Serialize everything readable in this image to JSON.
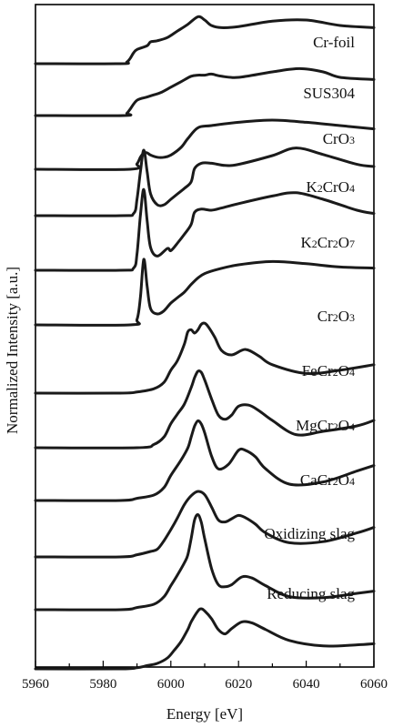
{
  "chart_data": {
    "type": "line",
    "title": "",
    "xlabel": "Energy [eV]",
    "ylabel": "Normalized Intensity [a.u.]",
    "xlim": [
      5960,
      6060
    ],
    "xticks": [
      5960,
      5980,
      6000,
      6020,
      6040,
      6060
    ],
    "yticks_shown": false,
    "grid": false,
    "legend": "none",
    "stacked_offset": true,
    "series": [
      {
        "name": "Cr-foil",
        "x": [
          5985,
          5987,
          5988,
          5989,
          5990,
          5993,
          5994,
          5996,
          5999,
          6002,
          6005,
          6008,
          6010,
          6012,
          6015,
          6020,
          6030,
          6040,
          6050,
          6060
        ],
        "y": [
          0.0,
          0.03,
          0.1,
          0.2,
          0.26,
          0.33,
          0.4,
          0.42,
          0.48,
          0.6,
          0.72,
          0.86,
          0.8,
          0.7,
          0.66,
          0.68,
          0.78,
          0.8,
          0.7,
          0.66
        ]
      },
      {
        "name": "SUS304",
        "x": [
          5986,
          5987,
          5988,
          5990,
          5993,
          5995,
          5997,
          6000,
          6003,
          6006,
          6008,
          6010,
          6012,
          6015,
          6020,
          6030,
          6038,
          6045,
          6050,
          6060
        ],
        "y": [
          0.0,
          0.04,
          0.12,
          0.28,
          0.34,
          0.38,
          0.42,
          0.52,
          0.62,
          0.72,
          0.74,
          0.74,
          0.76,
          0.72,
          0.7,
          0.8,
          0.86,
          0.8,
          0.7,
          0.66
        ]
      },
      {
        "name": "CrO₃",
        "x": [
          5988,
          5990,
          5991,
          5992,
          5993,
          5994,
          5996,
          5998,
          6000,
          6003,
          6005,
          6008,
          6012,
          6020,
          6030,
          6040,
          6050,
          6060
        ],
        "y": [
          0.0,
          0.1,
          0.22,
          0.3,
          0.3,
          0.26,
          0.22,
          0.22,
          0.26,
          0.4,
          0.56,
          0.76,
          0.8,
          0.86,
          0.9,
          0.86,
          0.8,
          0.74
        ]
      },
      {
        "name": "K₂CrO₄",
        "x": [
          5985,
          5989,
          5990,
          5991,
          5992,
          5993,
          5994,
          5996,
          5998,
          6000,
          6002,
          6004,
          6006,
          6007,
          6009,
          6012,
          6016,
          6020,
          6030,
          6037,
          6045,
          6055,
          6060
        ],
        "y": [
          0.0,
          0.04,
          0.3,
          0.8,
          1.2,
          0.8,
          0.4,
          0.2,
          0.2,
          0.3,
          0.4,
          0.5,
          0.62,
          0.86,
          0.96,
          0.96,
          0.92,
          0.94,
          1.1,
          1.24,
          1.12,
          0.94,
          0.9
        ]
      },
      {
        "name": "K₂Cr₂O₇",
        "x": [
          5985,
          5989,
          5990,
          5991,
          5992,
          5993,
          5994,
          5996,
          5999,
          6000,
          6002,
          6004,
          6006,
          6007,
          6009,
          6012,
          6015,
          6020,
          6030,
          6037,
          6045,
          6055,
          6060
        ],
        "y": [
          0.0,
          0.04,
          0.3,
          1.0,
          1.48,
          0.9,
          0.42,
          0.26,
          0.4,
          0.36,
          0.5,
          0.66,
          0.84,
          1.06,
          1.12,
          1.1,
          1.14,
          1.22,
          1.36,
          1.42,
          1.3,
          1.1,
          1.04
        ]
      },
      {
        "name": "Cr₂O₃",
        "x": [
          5988,
          5990,
          5991,
          5992,
          5993,
          5994,
          5996,
          5998,
          6000,
          6002,
          6004,
          6006,
          6008,
          6010,
          6014,
          6020,
          6030,
          6040,
          6050,
          6060
        ],
        "y": [
          0.0,
          0.1,
          0.5,
          1.2,
          0.7,
          0.3,
          0.2,
          0.26,
          0.4,
          0.5,
          0.6,
          0.74,
          0.86,
          0.94,
          1.02,
          1.1,
          1.16,
          1.12,
          1.06,
          1.04
        ]
      },
      {
        "name": "FeCr₂O₄",
        "x": [
          5985,
          5990,
          5995,
          5998,
          6000,
          6002,
          6004,
          6005,
          6006,
          6007,
          6008,
          6009,
          6010,
          6011,
          6013,
          6015,
          6018,
          6022,
          6026,
          6030,
          6040,
          6050,
          6060
        ],
        "y": [
          0.0,
          0.02,
          0.08,
          0.2,
          0.42,
          0.6,
          0.9,
          1.12,
          1.16,
          1.1,
          1.16,
          1.26,
          1.28,
          1.22,
          1.02,
          0.78,
          0.7,
          0.8,
          0.68,
          0.52,
          0.36,
          0.42,
          0.52
        ]
      },
      {
        "name": "MgCr₂O₄",
        "x": [
          5990,
          5995,
          5998,
          6000,
          6002,
          6004,
          6006,
          6007,
          6008,
          6009,
          6010,
          6012,
          6014,
          6016,
          6018,
          6020,
          6023,
          6026,
          6030,
          6037,
          6045,
          6055,
          6060
        ],
        "y": [
          0.0,
          0.06,
          0.2,
          0.44,
          0.62,
          0.8,
          1.1,
          1.28,
          1.4,
          1.38,
          1.24,
          0.9,
          0.6,
          0.52,
          0.6,
          0.76,
          0.78,
          0.68,
          0.5,
          0.24,
          0.3,
          0.4,
          0.5
        ]
      },
      {
        "name": "CaCr₂O₄",
        "x": [
          5985,
          5990,
          5995,
          5998,
          6000,
          6003,
          6005,
          6006,
          6007,
          6008,
          6009,
          6010,
          6012,
          6014,
          6017,
          6020,
          6022,
          6025,
          6028,
          6035,
          6045,
          6055,
          6060
        ],
        "y": [
          0.0,
          0.04,
          0.1,
          0.24,
          0.46,
          0.74,
          0.96,
          1.16,
          1.36,
          1.46,
          1.4,
          1.24,
          0.82,
          0.58,
          0.66,
          0.92,
          0.92,
          0.8,
          0.58,
          0.3,
          0.34,
          0.54,
          0.64
        ]
      },
      {
        "name": "Oxidizing slag",
        "x": [
          5985,
          5990,
          5994,
          5996,
          5998,
          6000,
          6002,
          6004,
          6006,
          6008,
          6010,
          6012,
          6014,
          6016,
          6018,
          6020,
          6022,
          6025,
          6028,
          6035,
          6045,
          6055,
          6060
        ],
        "y": [
          0.0,
          0.04,
          0.1,
          0.14,
          0.3,
          0.5,
          0.72,
          0.96,
          1.12,
          1.2,
          1.14,
          0.92,
          0.68,
          0.64,
          0.7,
          0.76,
          0.72,
          0.6,
          0.44,
          0.26,
          0.28,
          0.44,
          0.54
        ]
      },
      {
        "name": "Reducing slag",
        "x": [
          5985,
          5990,
          5995,
          5998,
          6000,
          6002,
          6004,
          6005,
          6006,
          6007,
          6008,
          6009,
          6010,
          6012,
          6014,
          6016,
          6018,
          6021,
          6024,
          6028,
          6035,
          6045,
          6055,
          6060
        ],
        "y": [
          0.0,
          0.04,
          0.1,
          0.24,
          0.44,
          0.64,
          0.86,
          1.0,
          1.3,
          1.64,
          1.74,
          1.6,
          1.3,
          0.76,
          0.46,
          0.42,
          0.46,
          0.6,
          0.58,
          0.44,
          0.24,
          0.22,
          0.3,
          0.34
        ]
      },
      {
        "name": "",
        "x": [
          5960,
          5985,
          5990,
          5993,
          5996,
          5999,
          6001,
          6003,
          6005,
          6006,
          6008,
          6009,
          6010,
          6012,
          6014,
          6016,
          6018,
          6021,
          6024,
          6028,
          6035,
          6045,
          6055,
          6060
        ],
        "y": [
          0.0,
          0.0,
          0.02,
          0.06,
          0.1,
          0.2,
          0.34,
          0.5,
          0.72,
          0.86,
          1.06,
          1.1,
          1.06,
          0.92,
          0.72,
          0.64,
          0.74,
          0.86,
          0.84,
          0.72,
          0.52,
          0.42,
          0.44,
          0.46
        ]
      }
    ]
  }
}
